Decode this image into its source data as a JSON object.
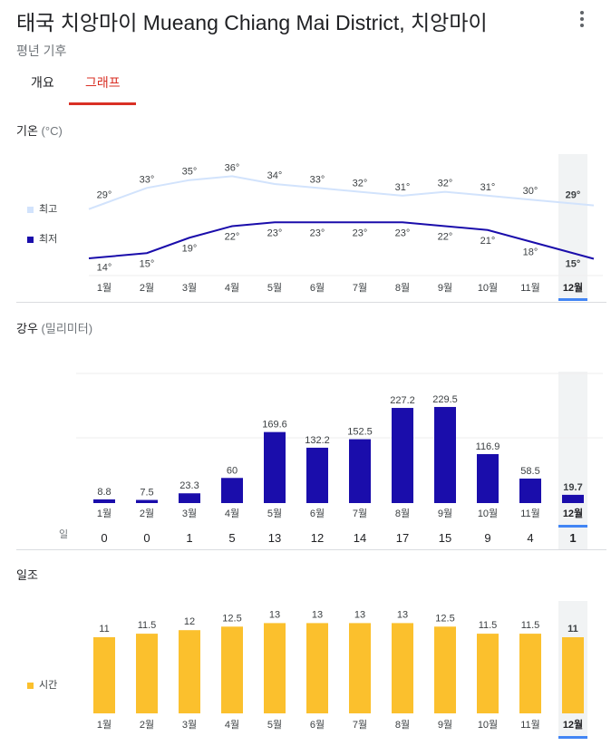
{
  "header": {
    "title": "태국 치앙마이 Mueang Chiang Mai District, 치앙마이",
    "subtitle": "평년 기후",
    "menu_icon": "more-vert-icon"
  },
  "tabs": [
    {
      "label": "개요",
      "active": false
    },
    {
      "label": "그래프",
      "active": true
    }
  ],
  "colors": {
    "high": "#d2e3fc",
    "low": "#1a0dab",
    "precip": "#1a0dab",
    "sun": "#fbc02d",
    "accent": "#d93025",
    "selected": "#4285f4"
  },
  "months": [
    "1월",
    "2월",
    "3월",
    "4월",
    "5월",
    "6월",
    "7월",
    "8월",
    "9월",
    "10월",
    "11월",
    "12월"
  ],
  "selected_month_index": 11,
  "temperature": {
    "title": "기온",
    "unit": "(°C)",
    "legend": [
      {
        "label": "최고"
      },
      {
        "label": "최저"
      }
    ]
  },
  "precipitation": {
    "title": "강우",
    "unit": "(밀리미터)",
    "days_label": "일"
  },
  "sunshine": {
    "title": "일조",
    "legend_label": "시간"
  },
  "chart_data": [
    {
      "type": "line",
      "categories": [
        "1월",
        "2월",
        "3월",
        "4월",
        "5월",
        "6월",
        "7월",
        "8월",
        "9월",
        "10월",
        "11월",
        "12월"
      ],
      "series": [
        {
          "name": "최고",
          "values": [
            29,
            33,
            35,
            36,
            34,
            33,
            32,
            31,
            32,
            31,
            30,
            29
          ]
        },
        {
          "name": "최저",
          "values": [
            14,
            15,
            19,
            22,
            23,
            23,
            23,
            23,
            22,
            21,
            18,
            15
          ]
        }
      ],
      "value_labels": {
        "high": [
          "29°",
          "33°",
          "35°",
          "36°",
          "34°",
          "33°",
          "32°",
          "31°",
          "32°",
          "31°",
          "30°",
          "29°"
        ],
        "low": [
          "14°",
          "15°",
          "19°",
          "22°",
          "23°",
          "23°",
          "23°",
          "23°",
          "22°",
          "21°",
          "18°",
          "15°"
        ]
      }
    },
    {
      "type": "bar",
      "categories": [
        "1월",
        "2월",
        "3월",
        "4월",
        "5월",
        "6월",
        "7월",
        "8월",
        "9월",
        "10월",
        "11월",
        "12월"
      ],
      "values": [
        8.8,
        7.5,
        23.3,
        60,
        169.6,
        132.2,
        152.5,
        227.2,
        229.5,
        116.9,
        58.5,
        19.7
      ],
      "value_labels": [
        "8.8",
        "7.5",
        "23.3",
        "60",
        "169.6",
        "132.2",
        "152.5",
        "227.2",
        "229.5",
        "116.9",
        "58.5",
        "19.7"
      ],
      "days": [
        "0",
        "0",
        "1",
        "5",
        "13",
        "12",
        "14",
        "17",
        "15",
        "9",
        "4",
        "1"
      ]
    },
    {
      "type": "bar",
      "categories": [
        "1월",
        "2월",
        "3월",
        "4월",
        "5월",
        "6월",
        "7월",
        "8월",
        "9월",
        "10월",
        "11월",
        "12월"
      ],
      "series": [
        {
          "name": "시간",
          "values": [
            11,
            11.5,
            12,
            12.5,
            13,
            13,
            13,
            13,
            12.5,
            11.5,
            11.5,
            11
          ]
        }
      ],
      "value_labels": [
        "11",
        "11.5",
        "12",
        "12.5",
        "13",
        "13",
        "13",
        "13",
        "12.5",
        "11.5",
        "11.5",
        "11"
      ]
    }
  ]
}
